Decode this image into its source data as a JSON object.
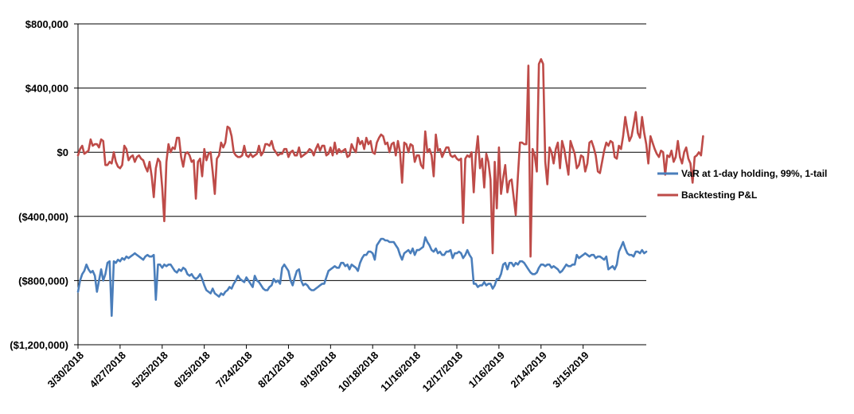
{
  "chart_data": {
    "type": "line",
    "title": "",
    "xlabel": "",
    "ylabel": "",
    "ylim": [
      -1200000,
      800000
    ],
    "grid": "horizontal",
    "legend_position": "right",
    "y_ticks": [
      {
        "value": 800000,
        "label": "$800,000"
      },
      {
        "value": 400000,
        "label": "$400,000"
      },
      {
        "value": 0,
        "label": "$0"
      },
      {
        "value": -400000,
        "label": "($400,000)"
      },
      {
        "value": -800000,
        "label": "($800,000)"
      },
      {
        "value": -1200000,
        "label": "($1,200,000)"
      }
    ],
    "x_tick_labels": [
      "3/30/2018",
      "4/27/2018",
      "5/25/2018",
      "6/25/2018",
      "7/24/2018",
      "8/21/2018",
      "9/19/2018",
      "10/18/2018",
      "11/16/2018",
      "12/17/2018",
      "1/16/2019",
      "2/14/2019",
      "3/15/2019"
    ],
    "x_tick_index": [
      0,
      20,
      40,
      60,
      80,
      100,
      120,
      140,
      160,
      180,
      200,
      220,
      240
    ],
    "series": [
      {
        "name": "VaR at 1-day holding, 99%, 1-tail",
        "color": "#4a7ebb",
        "values": [
          -870000,
          -800000,
          -760000,
          -740000,
          -700000,
          -730000,
          -750000,
          -740000,
          -770000,
          -870000,
          -800000,
          -730000,
          -800000,
          -760000,
          -690000,
          -680000,
          -1020000,
          -680000,
          -690000,
          -670000,
          -680000,
          -660000,
          -670000,
          -650000,
          -660000,
          -650000,
          -640000,
          -630000,
          -640000,
          -650000,
          -660000,
          -670000,
          -650000,
          -640000,
          -650000,
          -650000,
          -640000,
          -920000,
          -700000,
          -700000,
          -720000,
          -700000,
          -710000,
          -700000,
          -700000,
          -720000,
          -740000,
          -750000,
          -730000,
          -740000,
          -720000,
          -730000,
          -760000,
          -770000,
          -760000,
          -780000,
          -790000,
          -780000,
          -760000,
          -790000,
          -830000,
          -860000,
          -870000,
          -880000,
          -850000,
          -880000,
          -890000,
          -900000,
          -880000,
          -890000,
          -870000,
          -860000,
          -840000,
          -850000,
          -820000,
          -800000,
          -770000,
          -790000,
          -800000,
          -810000,
          -780000,
          -800000,
          -820000,
          -840000,
          -770000,
          -800000,
          -810000,
          -830000,
          -850000,
          -860000,
          -860000,
          -840000,
          -830000,
          -790000,
          -810000,
          -800000,
          -820000,
          -720000,
          -700000,
          -720000,
          -740000,
          -800000,
          -830000,
          -780000,
          -740000,
          -730000,
          -800000,
          -830000,
          -820000,
          -830000,
          -850000,
          -860000,
          -860000,
          -850000,
          -840000,
          -830000,
          -820000,
          -820000,
          -780000,
          -740000,
          -730000,
          -720000,
          -710000,
          -720000,
          -720000,
          -690000,
          -690000,
          -710000,
          -700000,
          -730000,
          -700000,
          -710000,
          -720000,
          -740000,
          -690000,
          -660000,
          -640000,
          -640000,
          -620000,
          -620000,
          -630000,
          -670000,
          -580000,
          -560000,
          -540000,
          -540000,
          -550000,
          -550000,
          -560000,
          -560000,
          -560000,
          -580000,
          -600000,
          -640000,
          -670000,
          -630000,
          -620000,
          -610000,
          -630000,
          -600000,
          -640000,
          -610000,
          -610000,
          -600000,
          -590000,
          -530000,
          -560000,
          -580000,
          -610000,
          -620000,
          -600000,
          -630000,
          -620000,
          -640000,
          -640000,
          -620000,
          -620000,
          -610000,
          -660000,
          -630000,
          -630000,
          -620000,
          -630000,
          -660000,
          -640000,
          -610000,
          -640000,
          -660000,
          -820000,
          -820000,
          -840000,
          -830000,
          -830000,
          -810000,
          -830000,
          -820000,
          -820000,
          -850000,
          -830000,
          -790000,
          -790000,
          -760000,
          -700000,
          -690000,
          -730000,
          -690000,
          -690000,
          -710000,
          -690000,
          -700000,
          -680000,
          -680000,
          -690000,
          -710000,
          -730000,
          -750000,
          -760000,
          -760000,
          -750000,
          -720000,
          -700000,
          -700000,
          -710000,
          -700000,
          -700000,
          -720000,
          -710000,
          -720000,
          -730000,
          -750000,
          -740000,
          -720000,
          -700000,
          -710000,
          -710000,
          -700000,
          -700000,
          -640000,
          -660000,
          -650000,
          -640000,
          -630000,
          -640000,
          -650000,
          -640000,
          -640000,
          -660000,
          -650000,
          -650000,
          -660000,
          -670000,
          -650000,
          -730000,
          -720000,
          -710000,
          -730000,
          -700000,
          -620000,
          -590000,
          -560000,
          -600000,
          -630000,
          -640000,
          -640000,
          -650000,
          -620000,
          -620000,
          -630000,
          -610000,
          -630000,
          -620000
        ]
      },
      {
        "name": "Backtesting P&L",
        "color": "#be4b48",
        "values": [
          -20000,
          20000,
          40000,
          -10000,
          0,
          10000,
          80000,
          40000,
          50000,
          50000,
          30000,
          80000,
          70000,
          -80000,
          -80000,
          -60000,
          -70000,
          0,
          -60000,
          -90000,
          -100000,
          -80000,
          40000,
          20000,
          -50000,
          -30000,
          -20000,
          -60000,
          -30000,
          -20000,
          -40000,
          -50000,
          -90000,
          -120000,
          -60000,
          -150000,
          -280000,
          -100000,
          -40000,
          -60000,
          -220000,
          -430000,
          -60000,
          50000,
          0,
          30000,
          20000,
          90000,
          90000,
          -30000,
          -90000,
          -10000,
          0,
          -20000,
          -60000,
          -50000,
          -290000,
          -60000,
          -40000,
          -150000,
          20000,
          -50000,
          -10000,
          0,
          -120000,
          -260000,
          -40000,
          -20000,
          60000,
          30000,
          60000,
          160000,
          150000,
          100000,
          0,
          -20000,
          -30000,
          -30000,
          -20000,
          40000,
          -20000,
          -30000,
          -10000,
          -30000,
          -20000,
          -10000,
          40000,
          -20000,
          0,
          50000,
          50000,
          40000,
          70000,
          20000,
          0,
          -20000,
          -10000,
          -10000,
          20000,
          20000,
          -30000,
          0,
          10000,
          -20000,
          -20000,
          30000,
          -30000,
          -20000,
          -10000,
          0,
          20000,
          10000,
          -20000,
          20000,
          50000,
          10000,
          40000,
          40000,
          -20000,
          -10000,
          30000,
          -20000,
          60000,
          -10000,
          20000,
          0,
          10000,
          20000,
          -30000,
          -20000,
          50000,
          20000,
          0,
          90000,
          50000,
          70000,
          20000,
          90000,
          50000,
          70000,
          0,
          -10000,
          60000,
          90000,
          110000,
          100000,
          50000,
          60000,
          0,
          50000,
          60000,
          -20000,
          70000,
          0,
          -190000,
          60000,
          50000,
          0,
          50000,
          40000,
          -60000,
          -20000,
          -20000,
          -80000,
          -100000,
          130000,
          0,
          20000,
          -20000,
          -150000,
          110000,
          10000,
          20000,
          -30000,
          0,
          30000,
          30000,
          -20000,
          -30000,
          -20000,
          -40000,
          -50000,
          -40000,
          -440000,
          -40000,
          -20000,
          -30000,
          0,
          -250000,
          -20000,
          100000,
          -100000,
          -40000,
          -220000,
          -10000,
          -60000,
          -170000,
          -630000,
          -60000,
          -350000,
          30000,
          -260000,
          -160000,
          -80000,
          -250000,
          -180000,
          -170000,
          -280000,
          -390000,
          -150000,
          60000,
          60000,
          50000,
          50000,
          540000,
          -650000,
          20000,
          -20000,
          -120000,
          550000,
          580000,
          550000,
          -60000,
          -200000,
          30000,
          0,
          -70000,
          20000,
          60000,
          -100000,
          70000,
          20000,
          -60000,
          -140000,
          70000,
          30000,
          -10000,
          -100000,
          -80000,
          -20000,
          -30000,
          -120000,
          -70000,
          60000,
          70000,
          30000,
          -20000,
          -120000,
          -130000,
          -60000,
          10000,
          60000,
          40000,
          70000,
          60000,
          -30000,
          -40000,
          40000,
          20000,
          100000,
          220000,
          140000,
          70000,
          100000,
          170000,
          250000,
          120000,
          90000,
          220000,
          120000,
          50000,
          -70000,
          100000,
          60000,
          20000,
          -10000,
          -30000,
          10000,
          0,
          -140000,
          -20000,
          -30000,
          10000,
          -60000,
          -30000,
          70000,
          -30000,
          -70000,
          0,
          30000,
          -40000,
          -70000,
          -190000,
          -30000,
          -20000,
          0,
          -20000,
          100000
        ]
      }
    ]
  }
}
